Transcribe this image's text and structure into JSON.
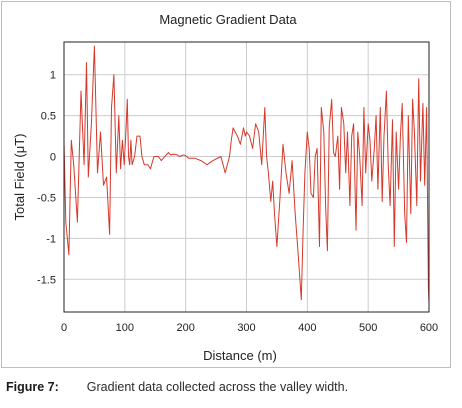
{
  "chart_data": {
    "type": "line",
    "title": "Magnetic Gradient Data",
    "xlabel": "Distance (m)",
    "ylabel": "Total Field (μT)",
    "xlim": [
      0,
      600
    ],
    "ylim": [
      -1.9,
      1.4
    ],
    "xticks": [
      "0",
      "100",
      "200",
      "300",
      "400",
      "500",
      "600"
    ],
    "xtick_values": [
      0,
      100,
      200,
      300,
      400,
      500,
      600
    ],
    "yticks": [
      "1",
      "0.5",
      "0",
      "-0.5",
      "-1",
      "-1.5"
    ],
    "ytick_values": [
      1,
      0.5,
      0,
      -0.5,
      -1,
      -1.5
    ],
    "grid": true,
    "series": [
      {
        "color": "#d6392b",
        "x": [
          0,
          3,
          8,
          12,
          16,
          22,
          28,
          33,
          37,
          40,
          45,
          50,
          55,
          60,
          65,
          70,
          75,
          78,
          82,
          86,
          90,
          93,
          96,
          99,
          102,
          104,
          106,
          108,
          110,
          112,
          116,
          120,
          125,
          128,
          132,
          138,
          142,
          148,
          155,
          160,
          168,
          172,
          175,
          180,
          186,
          190,
          196,
          200,
          205,
          215,
          225,
          235,
          245,
          258,
          265,
          272,
          275,
          278,
          285,
          290,
          295,
          298,
          300,
          305,
          310,
          315,
          320,
          325,
          330,
          333,
          336,
          340,
          343,
          346,
          350,
          355,
          360,
          365,
          370,
          375,
          380,
          385,
          390,
          393,
          396,
          400,
          403,
          406,
          410,
          413,
          416,
          420,
          423,
          427,
          430,
          433,
          436,
          440,
          443,
          446,
          450,
          453,
          456,
          460,
          463,
          466,
          470,
          473,
          476,
          480,
          483,
          486,
          490,
          493,
          496,
          500,
          503,
          506,
          510,
          513,
          516,
          520,
          523,
          526,
          530,
          533,
          536,
          540,
          543,
          546,
          550,
          553,
          556,
          560,
          563,
          566,
          570,
          573,
          576,
          580,
          583,
          586,
          590,
          593,
          596,
          599,
          600
        ],
        "y": [
          0.2,
          -0.8,
          -1.2,
          0.2,
          -0.1,
          -0.8,
          0.8,
          -0.1,
          1.15,
          -0.25,
          0.4,
          1.35,
          -0.2,
          0.3,
          -0.35,
          -0.25,
          -0.95,
          0.6,
          1.0,
          -0.2,
          0.5,
          -0.15,
          0.2,
          -0.1,
          0.35,
          0.7,
          0.0,
          -0.1,
          0.2,
          -0.1,
          0.0,
          0.25,
          0.25,
          0.0,
          -0.1,
          -0.1,
          -0.15,
          0.0,
          0.0,
          -0.05,
          0.02,
          0.05,
          0.02,
          0.03,
          0.02,
          0.0,
          0.02,
          0.01,
          -0.02,
          -0.02,
          -0.05,
          -0.1,
          -0.05,
          0.0,
          -0.2,
          0.0,
          0.2,
          0.35,
          0.25,
          0.15,
          0.35,
          0.25,
          0.3,
          0.25,
          0.1,
          0.4,
          0.3,
          -0.1,
          0.6,
          0.0,
          -0.2,
          -0.55,
          -0.3,
          -0.7,
          -1.1,
          -0.5,
          0.15,
          -0.2,
          -0.45,
          -0.05,
          -0.7,
          -1.2,
          -1.75,
          -0.9,
          -0.2,
          0.3,
          0.1,
          -0.45,
          -0.5,
          0.0,
          0.1,
          -1.1,
          0.6,
          0.3,
          -0.6,
          -1.15,
          0.35,
          0.7,
          0.05,
          0.0,
          0.25,
          -0.4,
          0.6,
          0.4,
          -0.2,
          0.3,
          -0.6,
          0.25,
          0.4,
          -0.9,
          0.3,
          0.0,
          -0.6,
          0.6,
          -0.2,
          0.4,
          0.2,
          -0.3,
          0.1,
          0.5,
          -0.4,
          0.6,
          -0.55,
          0.25,
          0.8,
          -0.1,
          -0.6,
          0.45,
          -1.1,
          0.3,
          -0.4,
          0.25,
          0.65,
          -0.7,
          -1.05,
          0.5,
          -0.7,
          0.7,
          0.3,
          -0.6,
          0.95,
          -0.3,
          0.65,
          -0.35,
          0.6,
          -1.6,
          -1.8
        ]
      }
    ]
  },
  "caption": {
    "label": "Figure 7:",
    "text": "Gradient data collected across the valley width."
  },
  "colors": {
    "line": "#d6392b",
    "grid": "#cccccc",
    "axis": "#222222",
    "frame": "#bdbdbd"
  }
}
